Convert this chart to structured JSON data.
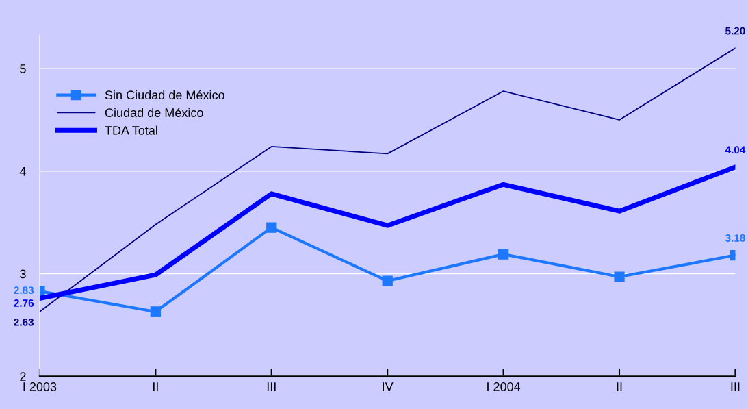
{
  "chart_data": {
    "type": "line",
    "categories": [
      "I 2003",
      "II",
      "III",
      "IV",
      "I 2004",
      "II",
      "III"
    ],
    "ylim": [
      2,
      5.33
    ],
    "yticks": [
      2,
      3,
      4,
      5
    ],
    "grid": "y",
    "legend": "top left",
    "series": [
      {
        "name": "Sin Ciudad de México",
        "color": "#1e78ff",
        "marker": "square",
        "values": [
          2.83,
          2.63,
          3.45,
          2.93,
          3.19,
          2.97,
          3.18
        ],
        "value_labels": [
          "2.83",
          null,
          null,
          null,
          null,
          null,
          "3.18"
        ]
      },
      {
        "name": "Ciudad de México",
        "color": "#000080",
        "marker": "none",
        "values": [
          2.63,
          3.48,
          4.24,
          4.17,
          4.78,
          4.5,
          5.2
        ],
        "value_labels": [
          "2.63",
          null,
          null,
          null,
          null,
          null,
          "5.20"
        ]
      },
      {
        "name": "TDA Total",
        "color": "#0000ff",
        "marker": "none",
        "values": [
          2.76,
          2.99,
          3.78,
          3.47,
          3.87,
          3.61,
          4.04
        ],
        "value_labels": [
          "2.76",
          null,
          null,
          null,
          null,
          null,
          "4.04"
        ]
      }
    ]
  }
}
